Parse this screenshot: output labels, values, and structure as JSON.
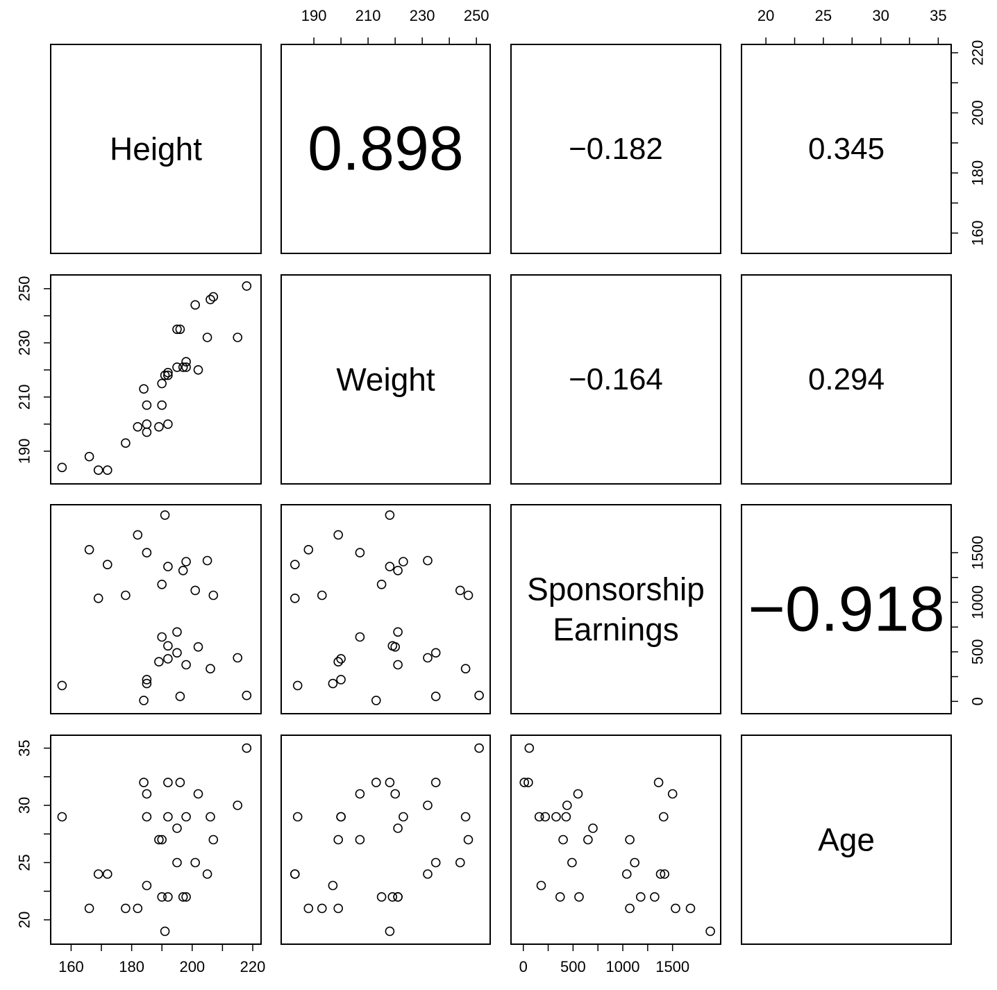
{
  "chart_data": {
    "type": "scatter-matrix",
    "variables": [
      {
        "name": "Height",
        "label_lines": [
          "Height"
        ],
        "range": [
          156,
          220
        ],
        "ticks": [
          160,
          180,
          200,
          220
        ]
      },
      {
        "name": "Weight",
        "label_lines": [
          "Weight"
        ],
        "range": [
          181,
          252
        ],
        "ticks": [
          190,
          210,
          230,
          250
        ]
      },
      {
        "name": "Sponsorship Earnings",
        "label_lines": [
          "Sponsorship",
          "Earnings"
        ],
        "range": [
          -40,
          1900
        ],
        "ticks": [
          0,
          500,
          1000,
          1500
        ]
      },
      {
        "name": "Age",
        "label_lines": [
          "Age"
        ],
        "range": [
          18.6,
          35.4
        ],
        "ticks": [
          20,
          25,
          30,
          35
        ]
      }
    ],
    "correlations": [
      {
        "row": 0,
        "col": 1,
        "text": "0.898",
        "value": 0.898
      },
      {
        "row": 0,
        "col": 2,
        "text": "−0.182",
        "value": -0.182
      },
      {
        "row": 0,
        "col": 3,
        "text": "0.345",
        "value": 0.345
      },
      {
        "row": 1,
        "col": 2,
        "text": "−0.164",
        "value": -0.164
      },
      {
        "row": 1,
        "col": 3,
        "text": "0.294",
        "value": 0.294
      },
      {
        "row": 2,
        "col": 3,
        "text": "−0.918",
        "value": -0.918
      }
    ],
    "observations": [
      [
        157,
        184,
        160,
        29
      ],
      [
        166,
        188,
        1530,
        21
      ],
      [
        169,
        183,
        1040,
        24
      ],
      [
        172,
        183,
        1380,
        24
      ],
      [
        178,
        193,
        1070,
        21
      ],
      [
        182,
        199,
        1680,
        21
      ],
      [
        184,
        213,
        10,
        32
      ],
      [
        185,
        207,
        1500,
        31
      ],
      [
        185,
        200,
        220,
        29
      ],
      [
        185,
        197,
        180,
        23
      ],
      [
        189,
        199,
        400,
        27
      ],
      [
        190,
        215,
        1180,
        22
      ],
      [
        190,
        207,
        650,
        27
      ],
      [
        191,
        218,
        1880,
        19
      ],
      [
        192,
        200,
        430,
        29
      ],
      [
        192,
        219,
        560,
        22
      ],
      [
        192,
        218,
        1360,
        32
      ],
      [
        195,
        221,
        700,
        28
      ],
      [
        195,
        235,
        490,
        25
      ],
      [
        196,
        235,
        50,
        32
      ],
      [
        197,
        221,
        1320,
        22
      ],
      [
        198,
        223,
        1410,
        29
      ],
      [
        198,
        221,
        370,
        22
      ],
      [
        201,
        244,
        1120,
        25
      ],
      [
        202,
        220,
        550,
        31
      ],
      [
        205,
        232,
        1420,
        24
      ],
      [
        206,
        246,
        330,
        29
      ],
      [
        207,
        247,
        1070,
        27
      ],
      [
        215,
        232,
        440,
        30
      ],
      [
        218,
        251,
        60,
        35
      ]
    ]
  }
}
